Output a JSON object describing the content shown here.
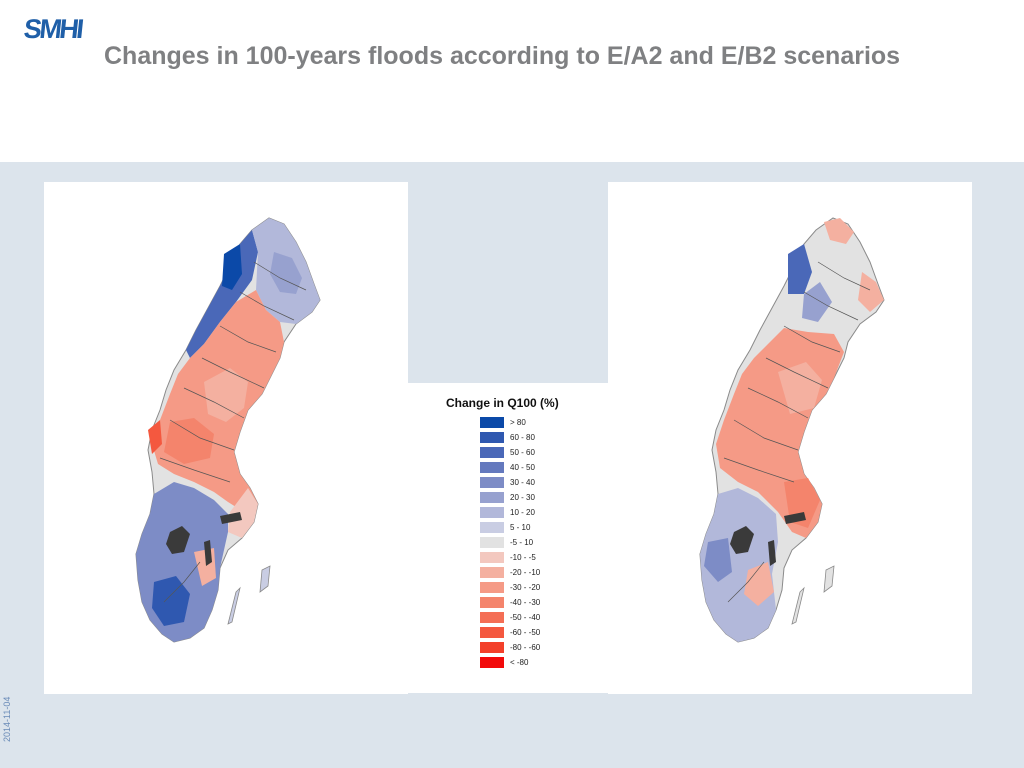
{
  "header": {
    "logo_text": "SMHI",
    "title": "Changes in 100-years floods according to E/A2 and E/B2 scenarios"
  },
  "maps": [
    {
      "name": "scenario-map-left",
      "dominant": "mixed-blue-south-north-west-red-central"
    },
    {
      "name": "scenario-map-right",
      "dominant": "mostly-red-central-east"
    }
  ],
  "legend": {
    "title": "Change in Q100 (%)",
    "classes": [
      {
        "label": "> 80",
        "color": "#0b49a8"
      },
      {
        "label": "60 - 80",
        "color": "#2f58b0"
      },
      {
        "label": "50 - 60",
        "color": "#4a68b8"
      },
      {
        "label": "40 - 50",
        "color": "#6479be"
      },
      {
        "label": "30 - 40",
        "color": "#7d8cc6"
      },
      {
        "label": "20 - 30",
        "color": "#97a1cf"
      },
      {
        "label": "10 - 20",
        "color": "#b2b8da"
      },
      {
        "label": "5 - 10",
        "color": "#c9cde3"
      },
      {
        "label": "-5 - 10",
        "color": "#e2e2e2"
      },
      {
        "label": "-10 - -5",
        "color": "#f3c8bf"
      },
      {
        "label": "-20 - -10",
        "color": "#f4b0a0"
      },
      {
        "label": "-30 - -20",
        "color": "#f59a86"
      },
      {
        "label": "-40 - -30",
        "color": "#f4846c"
      },
      {
        "label": "-50 - -40",
        "color": "#f46e55"
      },
      {
        "label": "-60 - -50",
        "color": "#f4583f"
      },
      {
        "label": "-80 - -60",
        "color": "#f3402a"
      },
      {
        "label": "< -80",
        "color": "#f20a0a"
      }
    ]
  },
  "footer": {
    "date": "2014-11-04"
  }
}
